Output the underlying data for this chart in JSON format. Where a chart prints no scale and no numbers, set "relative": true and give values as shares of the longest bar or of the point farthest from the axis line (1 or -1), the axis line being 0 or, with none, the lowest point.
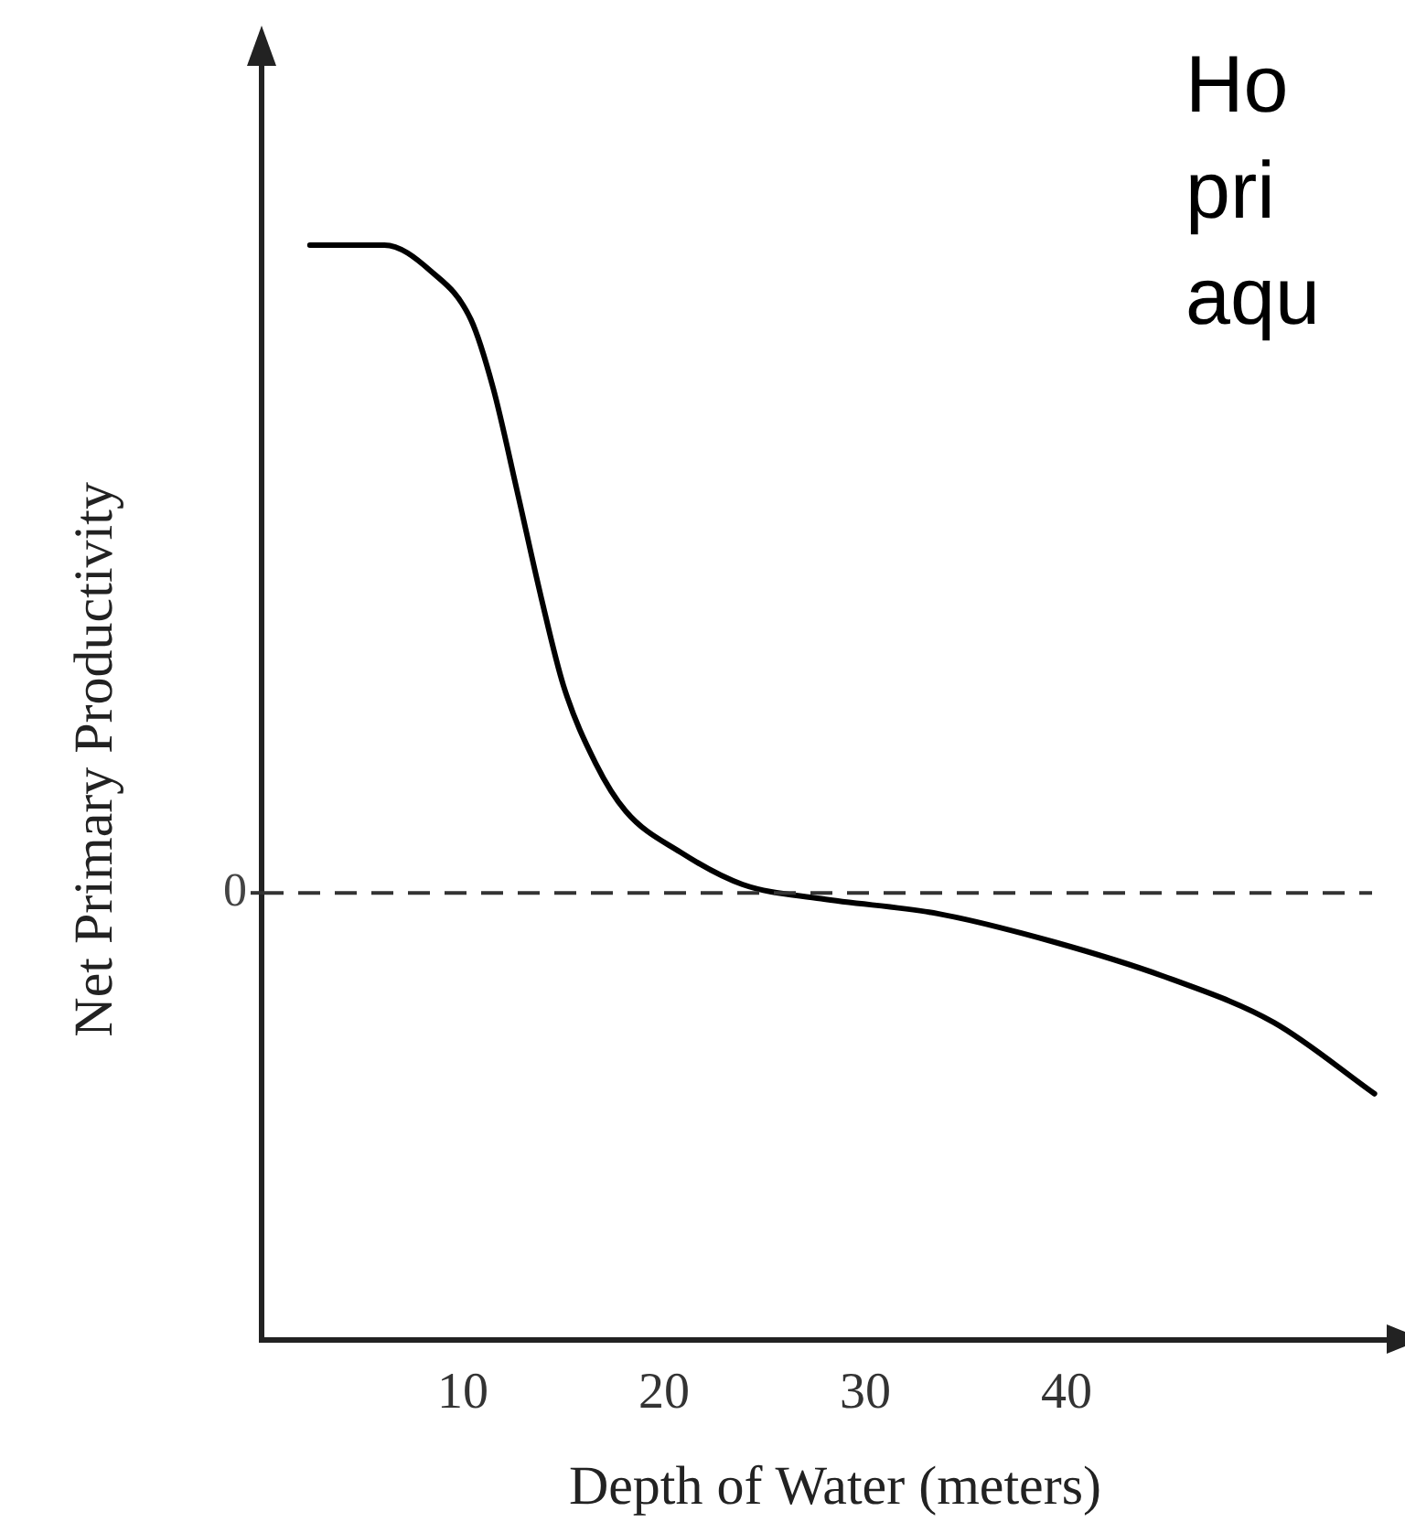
{
  "chart_data": {
    "type": "line",
    "relative": true,
    "xlabel": "Depth of Water (meters)",
    "ylabel": "Net Primary Productivity",
    "x": [
      2.4,
      6.1,
      8.4,
      10.4,
      11.5,
      12.7,
      13.9,
      15.0,
      16.6,
      18.1,
      20.8,
      23.9,
      27.8,
      33.6,
      39.4,
      45.2,
      50.3,
      55.3
    ],
    "series": [
      {
        "color": "#000000",
        "values": [
          1.0,
          1.0,
          0.96,
          0.885,
          0.78,
          0.62,
          0.455,
          0.32,
          0.2,
          0.126,
          0.063,
          0.013,
          -0.009,
          -0.032,
          -0.076,
          -0.133,
          -0.2,
          -0.31
        ]
      }
    ],
    "xlim": [
      0,
      57
    ],
    "xticks": [
      10,
      20,
      30,
      40
    ],
    "ref_lines": [
      {
        "axis": "y",
        "value": 0,
        "label": "0",
        "line_style": "dashed",
        "color": "#333333"
      }
    ],
    "annotations": [
      "Ho pri aqu"
    ],
    "grid": false,
    "legend": false,
    "marker": "none",
    "line_style": "solid"
  }
}
